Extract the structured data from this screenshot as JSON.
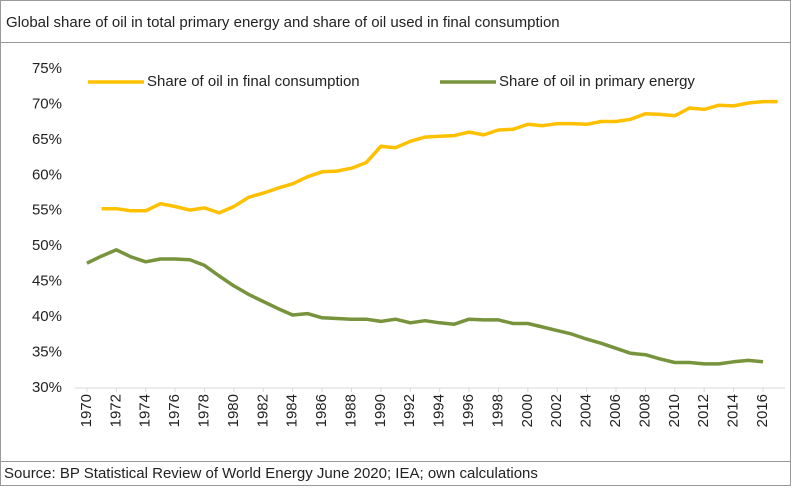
{
  "chart_data": {
    "type": "line",
    "title": "Global share of oil in total primary energy and share of oil used in final consumption",
    "source": "Source: BP Statistical Review of World Energy June 2020; IEA; own calculations",
    "x": [
      1970,
      1971,
      1972,
      1973,
      1974,
      1975,
      1976,
      1977,
      1978,
      1979,
      1980,
      1981,
      1982,
      1983,
      1984,
      1985,
      1986,
      1987,
      1988,
      1989,
      1990,
      1991,
      1992,
      1993,
      1994,
      1995,
      1996,
      1997,
      1998,
      1999,
      2000,
      2001,
      2002,
      2003,
      2004,
      2005,
      2006,
      2007,
      2008,
      2009,
      2010,
      2011,
      2012,
      2013,
      2014,
      2015,
      2016,
      2017
    ],
    "xlim": [
      1969.5,
      2017.5
    ],
    "xticks": [
      1970,
      1972,
      1974,
      1976,
      1978,
      1980,
      1982,
      1984,
      1986,
      1988,
      1990,
      1992,
      1994,
      1996,
      1998,
      2000,
      2002,
      2004,
      2006,
      2008,
      2010,
      2012,
      2014,
      2016
    ],
    "ylim": [
      30,
      75
    ],
    "yticks": [
      {
        "value": 30,
        "label": "30%"
      },
      {
        "value": 35,
        "label": "35%"
      },
      {
        "value": 40,
        "label": "40%"
      },
      {
        "value": 45,
        "label": "45%"
      },
      {
        "value": 50,
        "label": "50%"
      },
      {
        "value": 55,
        "label": "55%"
      },
      {
        "value": 60,
        "label": "60%"
      },
      {
        "value": 65,
        "label": "65%"
      },
      {
        "value": 70,
        "label": "70%"
      },
      {
        "value": 75,
        "label": "75%"
      }
    ],
    "grid": false,
    "legend": "top",
    "series": [
      {
        "name": "Share of oil in final consumption",
        "color": "#FFC000",
        "values": [
          null,
          55.3,
          55.3,
          55.0,
          55.0,
          56.0,
          55.6,
          55.1,
          55.4,
          54.7,
          55.6,
          56.9,
          57.5,
          58.2,
          58.8,
          59.8,
          60.5,
          60.6,
          61.0,
          61.8,
          64.1,
          63.9,
          64.8,
          65.4,
          65.5,
          65.6,
          66.1,
          65.7,
          66.4,
          66.5,
          67.2,
          67.0,
          67.3,
          67.3,
          67.2,
          67.6,
          67.6,
          67.9,
          68.7,
          68.6,
          68.4,
          69.5,
          69.3,
          69.9,
          69.8,
          70.2,
          70.4,
          70.4
        ]
      },
      {
        "name": "Share of oil in primary energy",
        "color": "#77933C",
        "values": [
          47.6,
          48.6,
          49.5,
          48.5,
          47.8,
          48.2,
          48.2,
          48.1,
          47.3,
          45.8,
          44.4,
          43.2,
          42.2,
          41.2,
          40.3,
          40.5,
          39.9,
          39.8,
          39.7,
          39.7,
          39.4,
          39.7,
          39.2,
          39.5,
          39.2,
          39.0,
          39.7,
          39.6,
          39.6,
          39.1,
          39.1,
          38.6,
          38.1,
          37.6,
          36.9,
          36.3,
          35.6,
          34.9,
          34.7,
          34.1,
          33.6,
          33.6,
          33.4,
          33.4,
          33.7,
          33.9,
          33.7,
          null
        ]
      }
    ]
  }
}
